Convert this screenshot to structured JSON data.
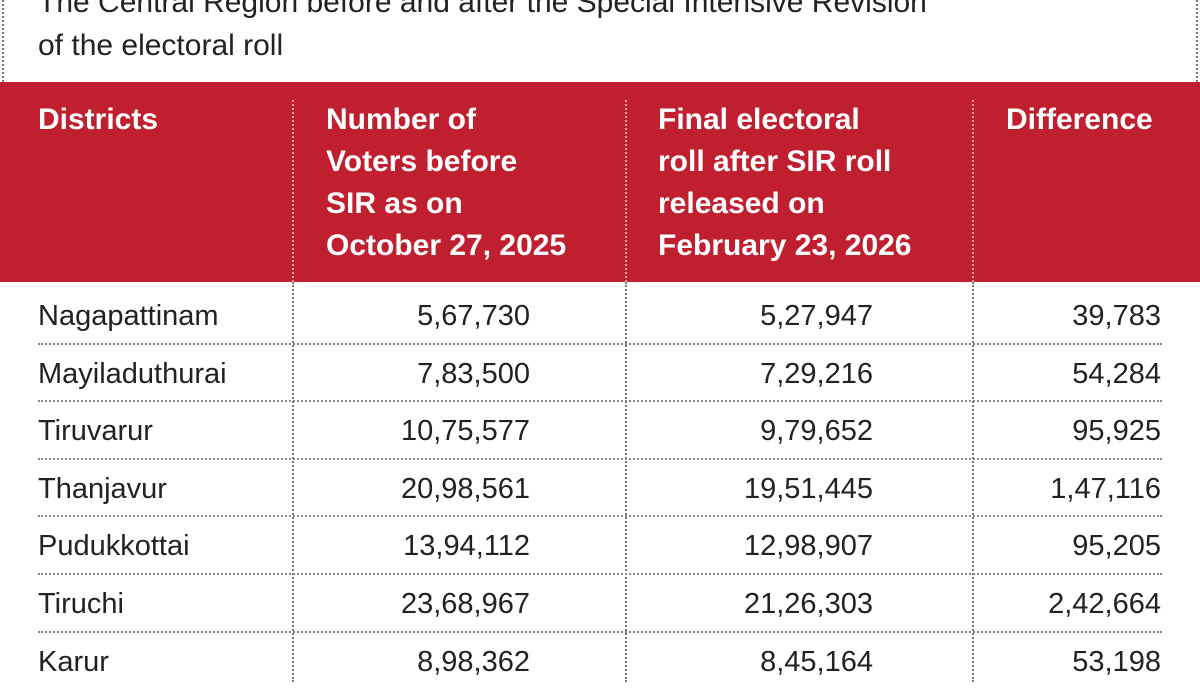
{
  "header": {
    "title": [
      "The Central Region before and after the Special Intensive Revision",
      "of the electoral roll"
    ]
  },
  "table": {
    "columns": [
      [
        "Districts"
      ],
      [
        "Number of",
        "Voters before",
        "SIR as on",
        "October 27, 2025"
      ],
      [
        "Final electoral",
        "roll after SIR roll",
        "released on",
        "February 23, 2026"
      ],
      [
        "Difference"
      ]
    ],
    "rows": [
      [
        "Nagapattinam",
        "5,67,730",
        "5,27,947",
        "39,783"
      ],
      [
        "Mayiladuthurai",
        "7,83,500",
        "7,29,216",
        "54,284"
      ],
      [
        "Tiruvarur",
        "10,75,577",
        "9,79,652",
        "95,925"
      ],
      [
        "Thanjavur",
        "20,98,561",
        "19,51,445",
        "1,47,116"
      ],
      [
        "Pudukkottai",
        "13,94,112",
        "12,98,907",
        "95,205"
      ],
      [
        "Tiruchi",
        "23,68,967",
        "21,26,303",
        "2,42,664"
      ],
      [
        "Karur",
        "8,98,362",
        "8,45,164",
        "53,198"
      ]
    ]
  }
}
